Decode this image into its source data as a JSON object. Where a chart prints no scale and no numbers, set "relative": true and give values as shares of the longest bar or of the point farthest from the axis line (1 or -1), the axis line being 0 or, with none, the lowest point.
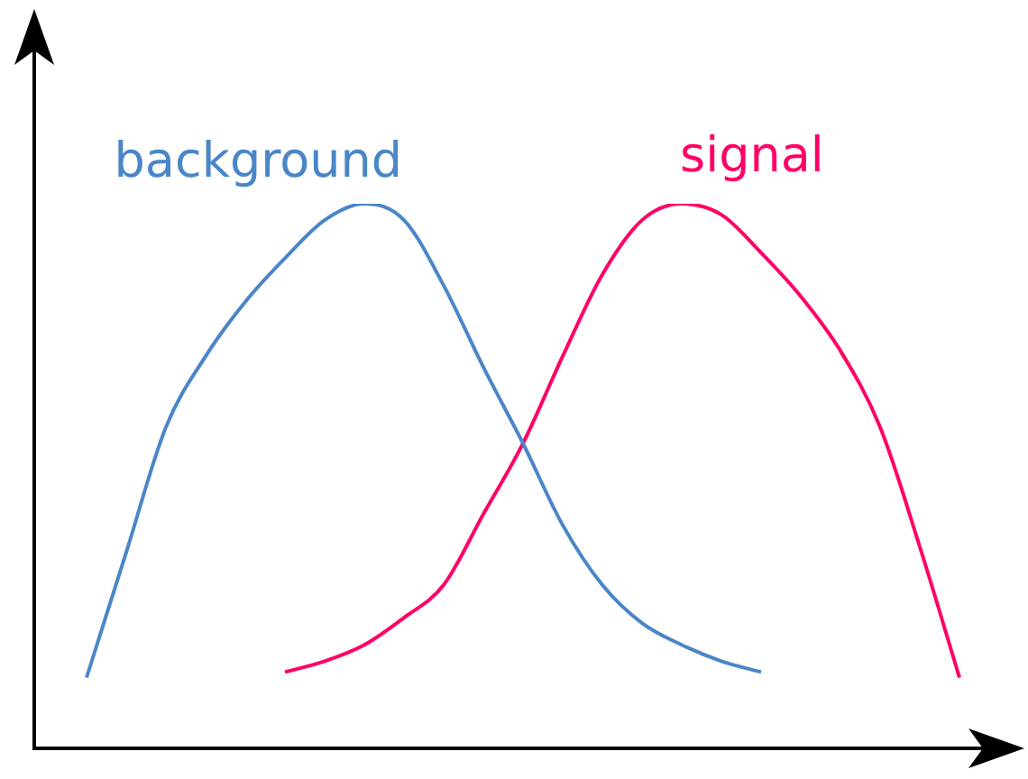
{
  "chart_data": {
    "type": "line",
    "relative": true,
    "legend": false,
    "marker": "none",
    "categories": [
      null,
      null,
      null,
      null,
      null,
      null,
      null,
      null,
      null,
      null,
      null,
      null,
      null,
      null,
      null,
      null,
      null,
      null,
      null,
      null,
      null,
      null,
      null
    ],
    "series": [
      {
        "name": "background",
        "color": "#4a86c8",
        "values": [
          0.13,
          0.36,
          0.59,
          0.72,
          0.82,
          0.9,
          0.97,
          1.0,
          0.97,
          0.85,
          0.7,
          0.56,
          0.41,
          0.3,
          0.23,
          0.19,
          0.16,
          0.14,
          null,
          null,
          null,
          null,
          null
        ]
      },
      {
        "name": "signal",
        "color": "#ff0066",
        "values": [
          null,
          null,
          null,
          null,
          null,
          0.14,
          0.16,
          0.19,
          0.24,
          0.3,
          0.43,
          0.56,
          0.72,
          0.87,
          0.97,
          1.0,
          0.98,
          0.91,
          0.83,
          0.73,
          0.59,
          0.37,
          0.13
        ]
      }
    ]
  }
}
